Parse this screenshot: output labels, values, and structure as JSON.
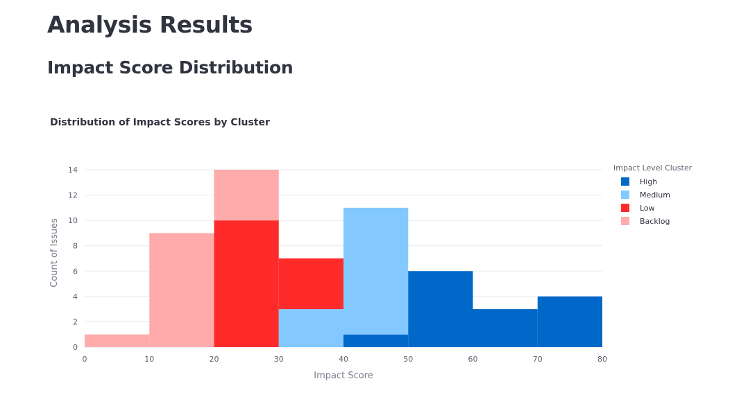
{
  "page": {
    "title": "Analysis Results",
    "section_title": "Impact Score Distribution"
  },
  "chart_data": {
    "type": "bar",
    "title": "Distribution of Impact Scores by Cluster",
    "xlabel": "Impact Score",
    "ylabel": "Count of Issues",
    "xlim": [
      0,
      80
    ],
    "ylim": [
      0,
      14
    ],
    "xticks": [
      0,
      10,
      20,
      30,
      40,
      50,
      60,
      70,
      80
    ],
    "yticks": [
      0,
      2,
      4,
      6,
      8,
      10,
      12,
      14
    ],
    "grid": true,
    "barmode": "stacked",
    "bin_edges": [
      0,
      10,
      20,
      30,
      40,
      50,
      60,
      70,
      80
    ],
    "legend": {
      "title": "Impact Level Cluster",
      "placement": "right"
    },
    "series": [
      {
        "name": "High",
        "color": "#0068c9",
        "values": [
          0,
          0,
          0,
          0,
          1,
          6,
          3,
          4
        ]
      },
      {
        "name": "Medium",
        "color": "#83c9ff",
        "values": [
          0,
          0,
          0,
          3,
          10,
          0,
          0,
          0
        ]
      },
      {
        "name": "Low",
        "color": "#ff2b2b",
        "values": [
          0,
          0,
          10,
          4,
          0,
          0,
          0,
          0
        ]
      },
      {
        "name": "Backlog",
        "color": "#ffabab",
        "values": [
          1,
          9,
          4,
          0,
          0,
          0,
          0,
          0
        ]
      }
    ]
  }
}
